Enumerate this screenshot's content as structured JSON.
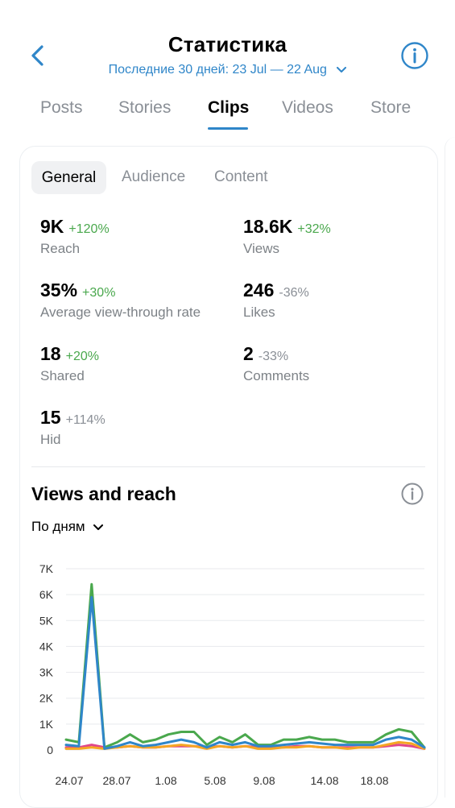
{
  "header": {
    "title": "Статистика",
    "period": "Последние 30 дней: 23 Jul — 22 Aug"
  },
  "tabs": [
    "Posts",
    "Stories",
    "Clips",
    "Videos",
    "Store"
  ],
  "subtabs": [
    "General",
    "Audience",
    "Content"
  ],
  "metrics": [
    {
      "value": "9K",
      "change": "+120%",
      "label": "Reach"
    },
    {
      "value": "18.6K",
      "change": "+32%",
      "label": "Views"
    },
    {
      "value": "35%",
      "change": "+30%",
      "label": "Average view-through rate"
    },
    {
      "value": "246",
      "change": "-36%",
      "label": "Likes"
    },
    {
      "value": "18",
      "change": "+20%",
      "label": "Shared"
    },
    {
      "value": "2",
      "change": "-33%",
      "label": "Comments"
    },
    {
      "value": "15",
      "change": "+114%",
      "label": "Hid"
    }
  ],
  "section": {
    "title": "Views and reach",
    "dropdown": "По дням"
  },
  "colors": {
    "accent": "#2f86c9",
    "positive": "#4aa84d",
    "muted": "#8a8f96"
  },
  "chart_data": {
    "type": "line",
    "title": "",
    "xlabel": "",
    "ylabel": "",
    "x_tick_labels": [
      "24.07",
      "28.07",
      "1.08",
      "5.08",
      "9.08",
      "14.08",
      "18.08"
    ],
    "y_tick_labels": [
      "0",
      "1K",
      "2K",
      "3K",
      "4K",
      "5K",
      "6K",
      "7K"
    ],
    "ylim": [
      0,
      7000
    ],
    "grid": true,
    "series": [
      {
        "color": "#4aa84d",
        "values": [
          400,
          300,
          6400,
          100,
          300,
          600,
          300,
          400,
          600,
          700,
          700,
          200,
          500,
          300,
          600,
          200,
          200,
          400,
          400,
          500,
          400,
          400,
          300,
          300,
          300,
          600,
          800,
          700,
          100
        ]
      },
      {
        "color": "#2f86c9",
        "values": [
          200,
          150,
          5900,
          50,
          150,
          300,
          150,
          200,
          300,
          400,
          300,
          100,
          300,
          200,
          300,
          150,
          150,
          200,
          250,
          300,
          250,
          200,
          200,
          200,
          200,
          400,
          500,
          400,
          100
        ]
      },
      {
        "color": "#f5a623",
        "values": [
          50,
          50,
          100,
          50,
          100,
          150,
          100,
          100,
          150,
          200,
          150,
          50,
          150,
          100,
          150,
          50,
          50,
          100,
          100,
          150,
          100,
          100,
          50,
          100,
          100,
          200,
          300,
          250,
          50
        ]
      },
      {
        "color": "#e0458a",
        "values": [
          100,
          100,
          200,
          100,
          100,
          150,
          100,
          100,
          150,
          150,
          150,
          100,
          150,
          100,
          150,
          100,
          100,
          100,
          150,
          150,
          100,
          100,
          100,
          100,
          100,
          150,
          200,
          150,
          50
        ]
      }
    ]
  }
}
